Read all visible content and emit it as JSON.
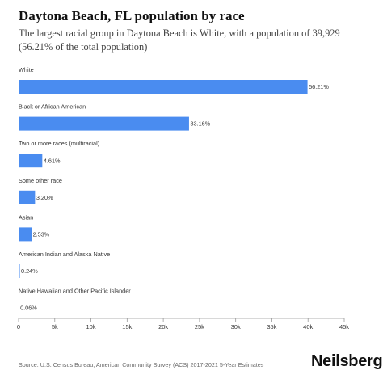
{
  "header": {
    "title": "Daytona Beach, FL population by race",
    "subtitle": "The largest racial group in Daytona Beach is White, with a population of 39,929 (56.21% of the total population)"
  },
  "footer": {
    "source": "Source: U.S. Census Bureau, American Community Survey (ACS) 2017-2021 5-Year Estimates",
    "brand": "Neilsberg"
  },
  "colors": {
    "bar": "#4a8cf0",
    "axis": "#999999",
    "text": "#333333"
  },
  "chart_data": {
    "type": "bar",
    "orientation": "horizontal",
    "categories": [
      "White",
      "Black or African American",
      "Two or more races (multiracial)",
      "Some other race",
      "Asian",
      "American Indian and Alaska Native",
      "Native Hawaiian and Other Pacific Islander"
    ],
    "values": [
      39929,
      23554,
      3275,
      2273,
      1797,
      170,
      43
    ],
    "data_labels": [
      "56.21%",
      "33.16%",
      "4.61%",
      "3.20%",
      "2.53%",
      "0.24%",
      "0.06%"
    ],
    "xlim": [
      0,
      45000
    ],
    "x_ticks": [
      0,
      5000,
      10000,
      15000,
      20000,
      25000,
      30000,
      35000,
      40000,
      45000
    ],
    "x_tick_labels": [
      "0",
      "5k",
      "10k",
      "15k",
      "20k",
      "25k",
      "30k",
      "35k",
      "40k",
      "45k"
    ],
    "grid": false,
    "legend": "none"
  }
}
